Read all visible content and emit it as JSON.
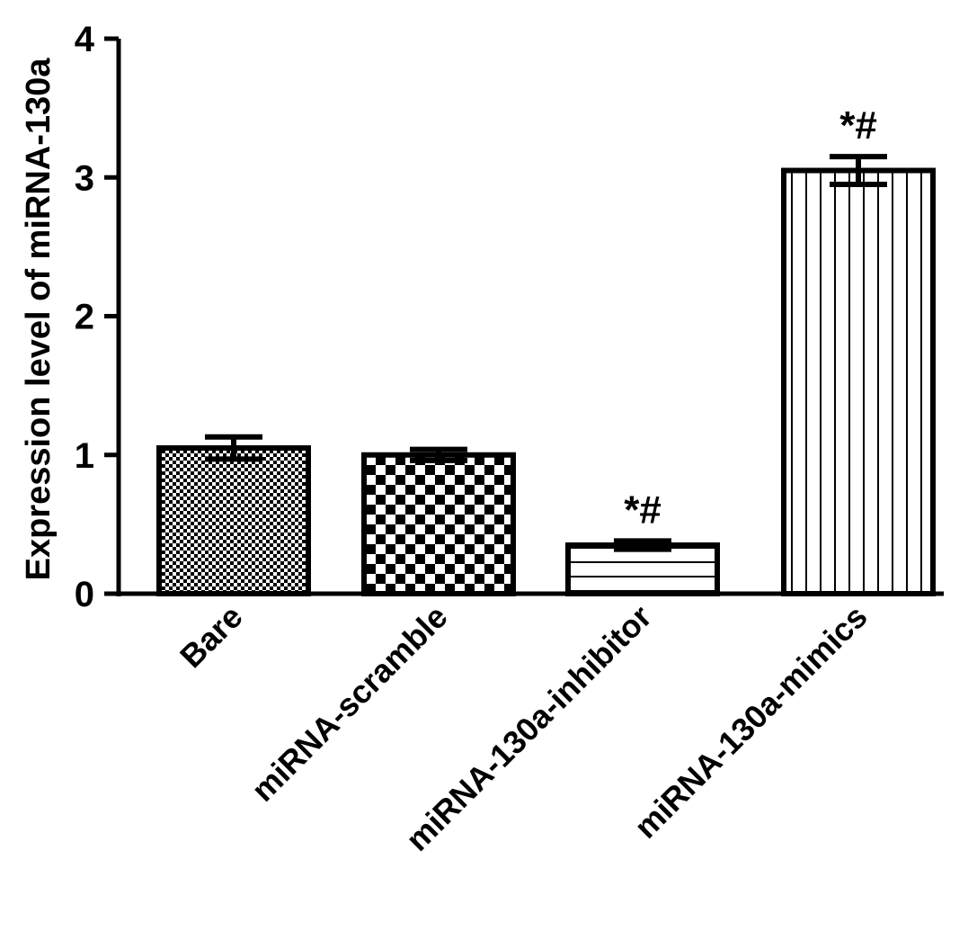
{
  "chart_data": {
    "type": "bar",
    "title": "",
    "xlabel": "",
    "ylabel": "Expression level of miRNA-130a",
    "ylim": [
      0,
      4
    ],
    "yticks": [
      0,
      1,
      2,
      3,
      4
    ],
    "categories": [
      "Bare",
      "miRNA-scramble",
      "miRNA-130a-inhibitor",
      "miRNA-130a-mimics"
    ],
    "values": [
      1.05,
      1.0,
      0.35,
      3.05
    ],
    "errors": [
      0.08,
      0.04,
      0.03,
      0.1
    ],
    "annotations": [
      "",
      "",
      "*#",
      "*#"
    ],
    "patterns": [
      "fine-checker",
      "coarse-checker",
      "horizontal-lines",
      "vertical-lines"
    ],
    "bar_color": "#ffffff",
    "stroke_color": "#000000",
    "grid": false,
    "legend": "none"
  }
}
